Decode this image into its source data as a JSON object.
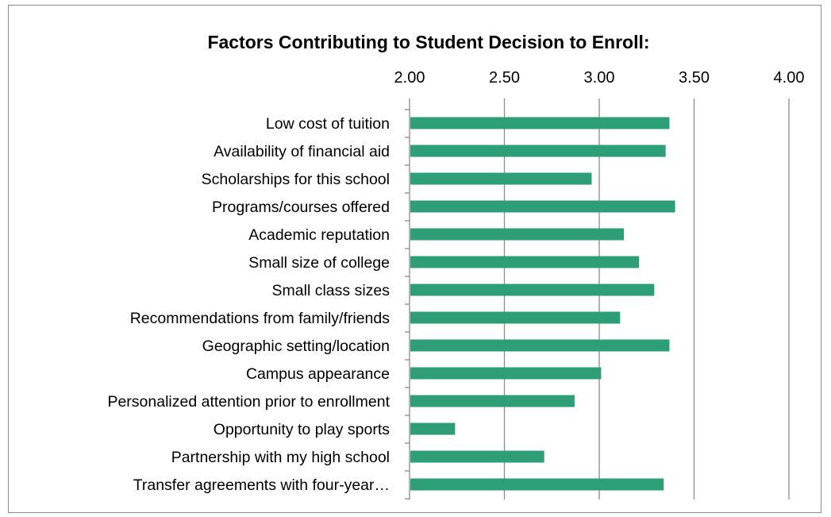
{
  "chart_data": {
    "type": "bar",
    "orientation": "horizontal",
    "title": "Factors Contributing to Student Decision to Enroll:",
    "xlabel": "",
    "ylabel": "",
    "xlim": [
      2.0,
      4.0
    ],
    "ticks": [
      "2.00",
      "2.50",
      "3.00",
      "3.50",
      "4.00"
    ],
    "tick_values": [
      2.0,
      2.5,
      3.0,
      3.5,
      4.0
    ],
    "axis_position": "top",
    "grid": true,
    "legend": "none",
    "categories": [
      "Low cost of tuition",
      "Availability of financial aid",
      "Scholarships for this school",
      "Programs/courses offered",
      "Academic reputation",
      "Small size of college",
      "Small class sizes",
      "Recommendations from family/friends",
      "Geographic setting/location",
      "Campus appearance",
      "Personalized attention prior to enrollment",
      "Opportunity to play sports",
      "Partnership with my high school",
      "Transfer agreements with four-year…"
    ],
    "values": [
      3.37,
      3.35,
      2.96,
      3.4,
      3.13,
      3.21,
      3.29,
      3.11,
      3.37,
      3.01,
      2.87,
      2.24,
      2.71,
      3.34
    ],
    "bar_color": "#2e9e77",
    "grid_color": "#8c8c8c"
  }
}
